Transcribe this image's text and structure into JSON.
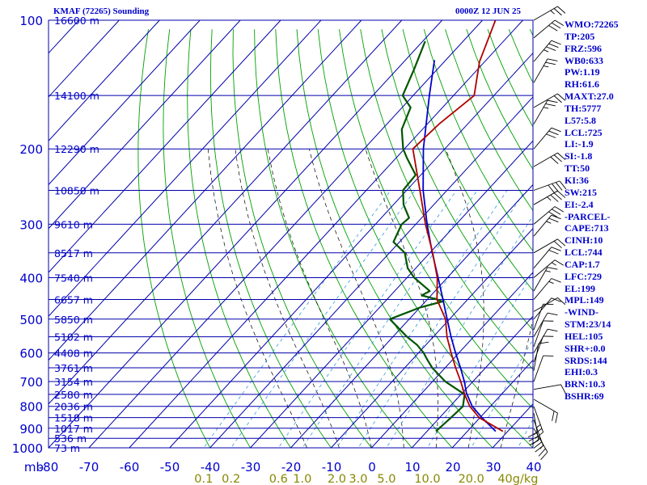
{
  "header": {
    "title": "KMAF (72265) Sounding",
    "time": "0000Z 12 JUN 25"
  },
  "indices": [
    "WMO:72265",
    "TP:205",
    "FRZ:596",
    "WB0:633",
    "PW:1.19",
    "RH:61.6",
    "MAXT:27.0",
    "TH:5777",
    "L57:5.8",
    "LCL:725",
    "LI:-1.9",
    "SI:-1.8",
    "TT:50",
    "KI:36",
    "SW:215",
    "EI:-2.4",
    "-PARCEL-",
    "CAPE:713",
    "CINH:10",
    "LCL:744",
    "CAP:1.7",
    "LFC:729",
    "EL:199",
    "MPL:149",
    "-WIND-",
    "STM:23/14",
    "HEL:105",
    "SHR+:0.0",
    "SRDS:144",
    "EHI:0.3",
    "BRN:10.3",
    "BSHR:69"
  ],
  "colors": {
    "frame": "#0000aa",
    "dry_adiabat": "#00a000",
    "moist_adiabat": "#000000",
    "mixing_ratio": "#3399dd",
    "temperature": "#b00000",
    "dewpoint": "#005500",
    "parcel": "#0000cc",
    "mixing_label": "#888800",
    "label": "#0000cc"
  },
  "chart_data": {
    "type": "line",
    "title": "KMAF (72265) Sounding",
    "subtitle": "0000Z 12 JUN 25",
    "skew": "skew-T log-p",
    "y_scale": "log",
    "ylabel": "mb",
    "xlim": [
      -80,
      40
    ],
    "ylim": [
      1000,
      100
    ],
    "pressure_ticks": [
      100,
      200,
      300,
      400,
      500,
      600,
      700,
      800,
      900,
      1000
    ],
    "x_ticks": [
      "mb",
      "-80",
      "-70",
      "-60",
      "-50",
      "-40",
      "-30",
      "-20",
      "-10",
      "0",
      "10",
      "20",
      "30",
      "40"
    ],
    "mixing_ratio_labels": [
      "0.1",
      "0.2",
      "0.6",
      "1.0",
      "2.0",
      "3.0",
      "5.0",
      "10.0",
      "20.0",
      "40g/kg"
    ],
    "mixing_ratio_values": [
      0.1,
      0.2,
      0.6,
      1.0,
      2.0,
      3.0,
      5.0,
      10.0,
      20.0,
      40.0
    ],
    "height_labels": [
      {
        "p": 100,
        "label": "16600 m"
      },
      {
        "p": 150,
        "label": "14100 m"
      },
      {
        "p": 200,
        "label": "12290 m"
      },
      {
        "p": 250,
        "label": "10850 m"
      },
      {
        "p": 300,
        "label": "9610 m"
      },
      {
        "p": 350,
        "label": "8517 m"
      },
      {
        "p": 400,
        "label": "7540 m"
      },
      {
        "p": 450,
        "label": "6657 m"
      },
      {
        "p": 500,
        "label": "5850 m"
      },
      {
        "p": 550,
        "label": "5102 m"
      },
      {
        "p": 600,
        "label": "4408 m"
      },
      {
        "p": 650,
        "label": "3761 m"
      },
      {
        "p": 700,
        "label": "3154 m"
      },
      {
        "p": 750,
        "label": "2580 m"
      },
      {
        "p": 800,
        "label": "2036 m"
      },
      {
        "p": 850,
        "label": "1518 m"
      },
      {
        "p": 900,
        "label": "1017 m"
      },
      {
        "p": 950,
        "label": "536 m"
      },
      {
        "p": 1000,
        "label": "73 m"
      }
    ],
    "series": [
      {
        "key": "temperature",
        "points": [
          [
            915,
            28.8
          ],
          [
            850,
            19.8
          ],
          [
            800,
            14.9
          ],
          [
            750,
            10.9
          ],
          [
            700,
            7.0
          ],
          [
            650,
            2.6
          ],
          [
            600,
            -1.9
          ],
          [
            550,
            -6.6
          ],
          [
            500,
            -11.0
          ],
          [
            450,
            -17.6
          ],
          [
            400,
            -22.5
          ],
          [
            350,
            -29.3
          ],
          [
            300,
            -37.6
          ],
          [
            250,
            -46.7
          ],
          [
            200,
            -57.9
          ],
          [
            175,
            -57.1
          ],
          [
            150,
            -54.9
          ],
          [
            125,
            -61.3
          ],
          [
            100,
            -66.8
          ]
        ]
      },
      {
        "key": "dewpoint",
        "points": [
          [
            915,
            12.2
          ],
          [
            850,
            12.8
          ],
          [
            800,
            13.2
          ],
          [
            750,
            10.9
          ],
          [
            700,
            3.2
          ],
          [
            650,
            -3.2
          ],
          [
            620,
            -6.5
          ],
          [
            600,
            -8.7
          ],
          [
            575,
            -12.1
          ],
          [
            550,
            -16.5
          ],
          [
            500,
            -24.8
          ],
          [
            470,
            -20.0
          ],
          [
            455,
            -15.8
          ],
          [
            450,
            -17.5
          ],
          [
            440,
            -22.3
          ],
          [
            430,
            -21.3
          ],
          [
            400,
            -28.2
          ],
          [
            380,
            -32.0
          ],
          [
            350,
            -36.2
          ],
          [
            330,
            -41.5
          ],
          [
            300,
            -43.5
          ],
          [
            290,
            -43.1
          ],
          [
            270,
            -47.5
          ],
          [
            250,
            -50.9
          ],
          [
            230,
            -51.3
          ],
          [
            210,
            -57.3
          ],
          [
            200,
            -60.3
          ],
          [
            180,
            -65.1
          ],
          [
            160,
            -67.9
          ],
          [
            150,
            -72.6
          ],
          [
            130,
            -75.8
          ],
          [
            112,
            -79.4
          ]
        ]
      },
      {
        "key": "parcel",
        "points": [
          [
            915,
            27.0
          ],
          [
            850,
            20.5
          ],
          [
            800,
            15.5
          ],
          [
            744,
            11.0
          ],
          [
            700,
            7.9
          ],
          [
            650,
            3.8
          ],
          [
            600,
            -0.8
          ],
          [
            550,
            -5.6
          ],
          [
            500,
            -10.6
          ],
          [
            450,
            -16.1
          ],
          [
            400,
            -22.3
          ],
          [
            350,
            -29.4
          ],
          [
            300,
            -37.2
          ],
          [
            250,
            -45.9
          ],
          [
            200,
            -55.3
          ],
          [
            150,
            -66.0
          ],
          [
            124,
            -72.8
          ]
        ]
      }
    ],
    "wind_barbs": [
      {
        "p": 100,
        "dir": 60,
        "kt": 25
      },
      {
        "p": 110,
        "dir": 50,
        "kt": 30
      },
      {
        "p": 125,
        "dir": 40,
        "kt": 35
      },
      {
        "p": 140,
        "dir": 30,
        "kt": 25
      },
      {
        "p": 160,
        "dir": 60,
        "kt": 20
      },
      {
        "p": 175,
        "dir": 30,
        "kt": 25
      },
      {
        "p": 200,
        "dir": 40,
        "kt": 30
      },
      {
        "p": 220,
        "dir": 60,
        "kt": 30
      },
      {
        "p": 250,
        "dir": 70,
        "kt": 40
      },
      {
        "p": 270,
        "dir": 60,
        "kt": 35
      },
      {
        "p": 300,
        "dir": 50,
        "kt": 30
      },
      {
        "p": 320,
        "dir": 40,
        "kt": 25
      },
      {
        "p": 350,
        "dir": 60,
        "kt": 20
      },
      {
        "p": 380,
        "dir": 40,
        "kt": 20
      },
      {
        "p": 400,
        "dir": 50,
        "kt": 15
      },
      {
        "p": 430,
        "dir": 30,
        "kt": 15
      },
      {
        "p": 450,
        "dir": 40,
        "kt": 15
      },
      {
        "p": 480,
        "dir": 60,
        "kt": 10
      },
      {
        "p": 500,
        "dir": 40,
        "kt": 10
      },
      {
        "p": 530,
        "dir": 20,
        "kt": 10
      },
      {
        "p": 550,
        "dir": 30,
        "kt": 10
      },
      {
        "p": 580,
        "dir": 20,
        "kt": 10
      },
      {
        "p": 600,
        "dir": 30,
        "kt": 10
      },
      {
        "p": 630,
        "dir": 20,
        "kt": 10
      },
      {
        "p": 660,
        "dir": 10,
        "kt": 10
      },
      {
        "p": 700,
        "dir": 20,
        "kt": 10
      },
      {
        "p": 730,
        "dir": 80,
        "kt": 10
      },
      {
        "p": 770,
        "dir": 120,
        "kt": 20
      },
      {
        "p": 800,
        "dir": 160,
        "kt": 25
      },
      {
        "p": 830,
        "dir": 170,
        "kt": 30
      },
      {
        "p": 860,
        "dir": 160,
        "kt": 30
      },
      {
        "p": 900,
        "dir": 150,
        "kt": 25
      }
    ]
  }
}
